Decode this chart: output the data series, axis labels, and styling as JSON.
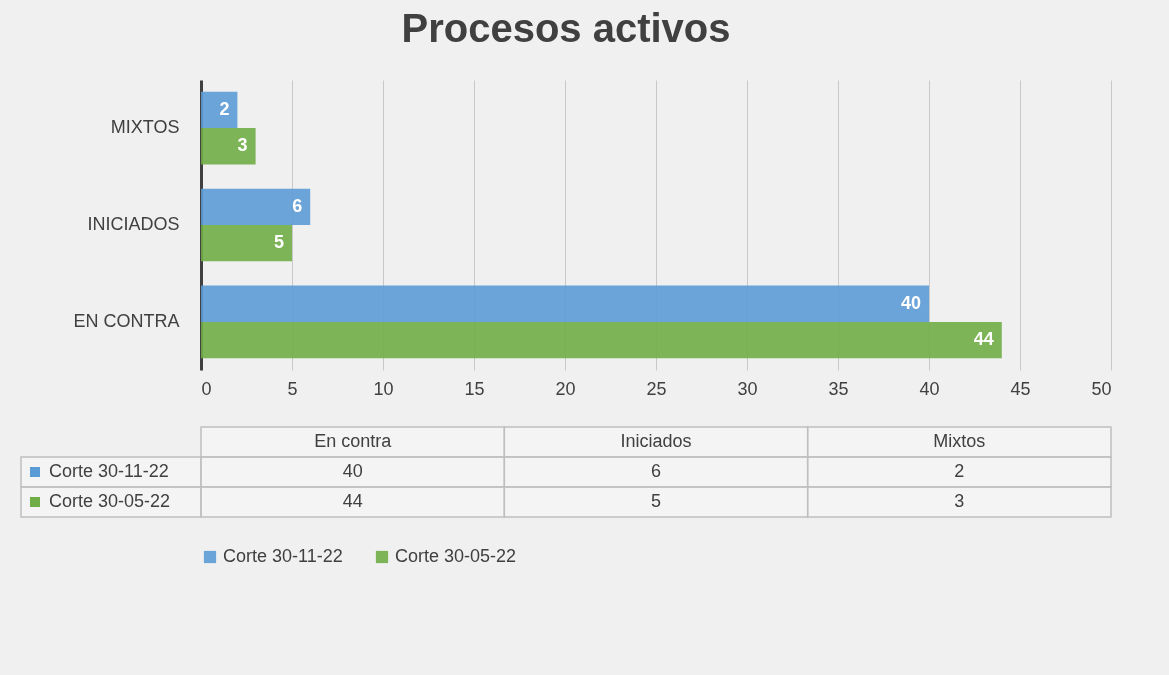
{
  "chart_data": {
    "type": "bar",
    "orientation": "horizontal",
    "title": "Procesos activos",
    "categories": [
      "MIXTOS",
      "INICIADOS",
      "EN CONTRA"
    ],
    "series": [
      {
        "name": "Corte 30-11-22",
        "color": "#5b9bd5",
        "values": [
          2,
          6,
          40
        ]
      },
      {
        "name": "Corte 30-05-22",
        "color": "#70ad47",
        "values": [
          3,
          5,
          44
        ]
      }
    ],
    "xlim": [
      0,
      50
    ],
    "xticks": [
      0,
      5,
      10,
      15,
      20,
      25,
      30,
      35,
      40,
      45,
      50
    ],
    "grid": "x",
    "legend": "bottom",
    "data_labels": true,
    "annotations": [
      "En contra",
      "Iniciados",
      "Mixtos",
      "40",
      "6",
      "2",
      "44",
      "5",
      "3"
    ]
  }
}
